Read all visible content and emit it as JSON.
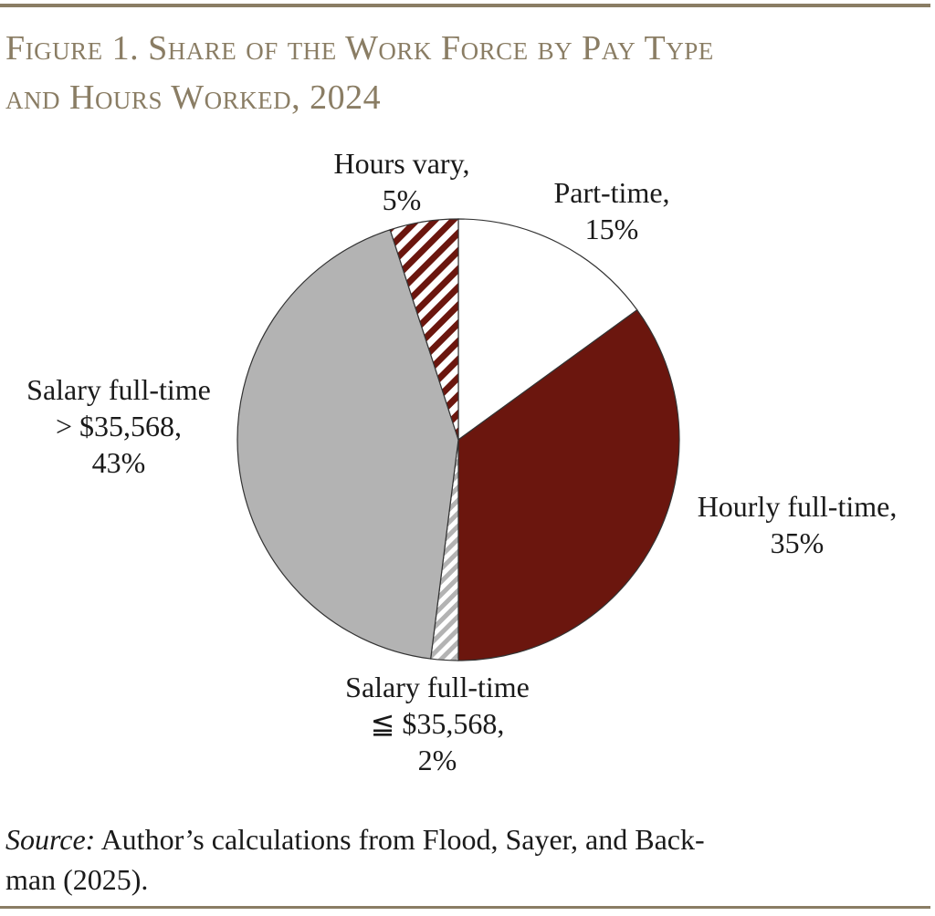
{
  "header": {
    "title_line1": "Figure 1. Share of the Work Force by Pay Type",
    "title_line2": "and Hours Worked, 2024"
  },
  "chart_data": {
    "type": "pie",
    "title": "Figure 1. Share of the Work Force by Pay Type and Hours Worked, 2024",
    "slices": [
      {
        "label": [
          "Part-time,",
          "15%"
        ],
        "value": 15,
        "color": "#ffffff",
        "pattern": "none"
      },
      {
        "label": [
          "Hourly full-time,",
          "35%"
        ],
        "value": 35,
        "color": "#6b160e",
        "pattern": "none"
      },
      {
        "label": [
          "Salary full-time",
          "≦ $35,568,",
          "2%"
        ],
        "value": 2,
        "color": "#b3b3b3",
        "pattern": "hatch-light"
      },
      {
        "label": [
          "Salary full-time",
          "> $35,568,",
          "43%"
        ],
        "value": 43,
        "color": "#b3b3b3",
        "pattern": "none"
      },
      {
        "label": [
          "Hours vary,",
          "5%"
        ],
        "value": 5,
        "color": "#6b160e",
        "pattern": "hatch-dark"
      }
    ],
    "start": "12 o'clock",
    "direction": "clockwise"
  },
  "footer": {
    "source_label": "Source:",
    "source_line1": " Author’s calculations from Flood, Sayer, and Back-",
    "source_line2": "man (2025)."
  }
}
